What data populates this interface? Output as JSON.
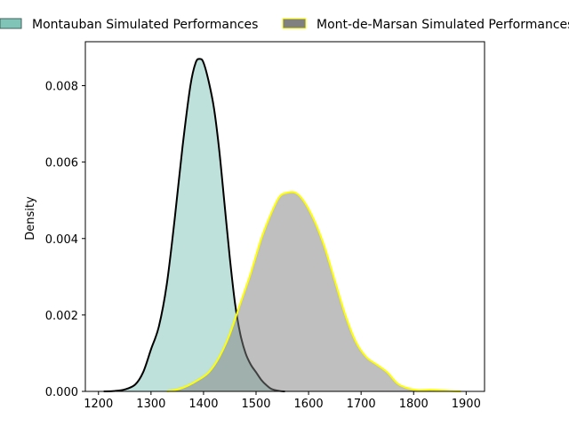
{
  "chart_data": {
    "type": "area",
    "title": "",
    "xlabel": "",
    "ylabel": "Density",
    "xlim": [
      1175,
      1935
    ],
    "ylim": [
      0,
      0.00915
    ],
    "x_ticks": [
      1200,
      1300,
      1400,
      1500,
      1600,
      1700,
      1800,
      1900
    ],
    "x_tick_labels": [
      "1200",
      "1300",
      "1400",
      "1500",
      "1600",
      "1700",
      "1800",
      "1900"
    ],
    "y_ticks": [
      0,
      0.002,
      0.004,
      0.006,
      0.008
    ],
    "y_tick_labels": [
      "0.000",
      "0.002",
      "0.004",
      "0.006",
      "0.008"
    ],
    "grid": false,
    "legend_position": "top",
    "series": [
      {
        "name": "Montauban Simulated Performances",
        "fill": "#80c4b8",
        "fill_opacity": 0.5,
        "stroke": "#000000",
        "x": [
          1210,
          1230,
          1250,
          1270,
          1285,
          1300,
          1315,
          1330,
          1345,
          1360,
          1375,
          1385,
          1393,
          1400,
          1410,
          1420,
          1430,
          1440,
          1450,
          1460,
          1470,
          1480,
          1490,
          1500,
          1510,
          1520,
          1530,
          1545,
          1555
        ],
        "values": [
          0,
          1e-05,
          5e-05,
          0.00018,
          0.0005,
          0.0011,
          0.0017,
          0.0028,
          0.0045,
          0.0064,
          0.008,
          0.0086,
          0.0087,
          0.0086,
          0.0081,
          0.0074,
          0.0063,
          0.0049,
          0.0035,
          0.0023,
          0.0015,
          0.001,
          0.0007,
          0.0005,
          0.0003,
          0.00016,
          6e-05,
          1e-05,
          0
        ]
      },
      {
        "name": "Mont-de-Marsan Simulated Performances",
        "fill": "#808080",
        "fill_opacity": 0.5,
        "stroke": "#ffff00",
        "x": [
          1330,
          1350,
          1370,
          1390,
          1410,
          1430,
          1450,
          1470,
          1490,
          1510,
          1530,
          1545,
          1560,
          1575,
          1590,
          1610,
          1630,
          1650,
          1670,
          1690,
          1710,
          1730,
          1750,
          1770,
          1790,
          1810,
          1830,
          1850,
          1870,
          1890
        ],
        "values": [
          0,
          5e-05,
          0.00015,
          0.0003,
          0.0005,
          0.0009,
          0.0015,
          0.0023,
          0.0031,
          0.004,
          0.0047,
          0.0051,
          0.0052,
          0.0052,
          0.005,
          0.0045,
          0.0038,
          0.0029,
          0.002,
          0.0013,
          0.0009,
          0.0007,
          0.0005,
          0.0002,
          8e-05,
          3e-05,
          4e-05,
          3e-05,
          1e-05,
          0
        ]
      }
    ]
  }
}
